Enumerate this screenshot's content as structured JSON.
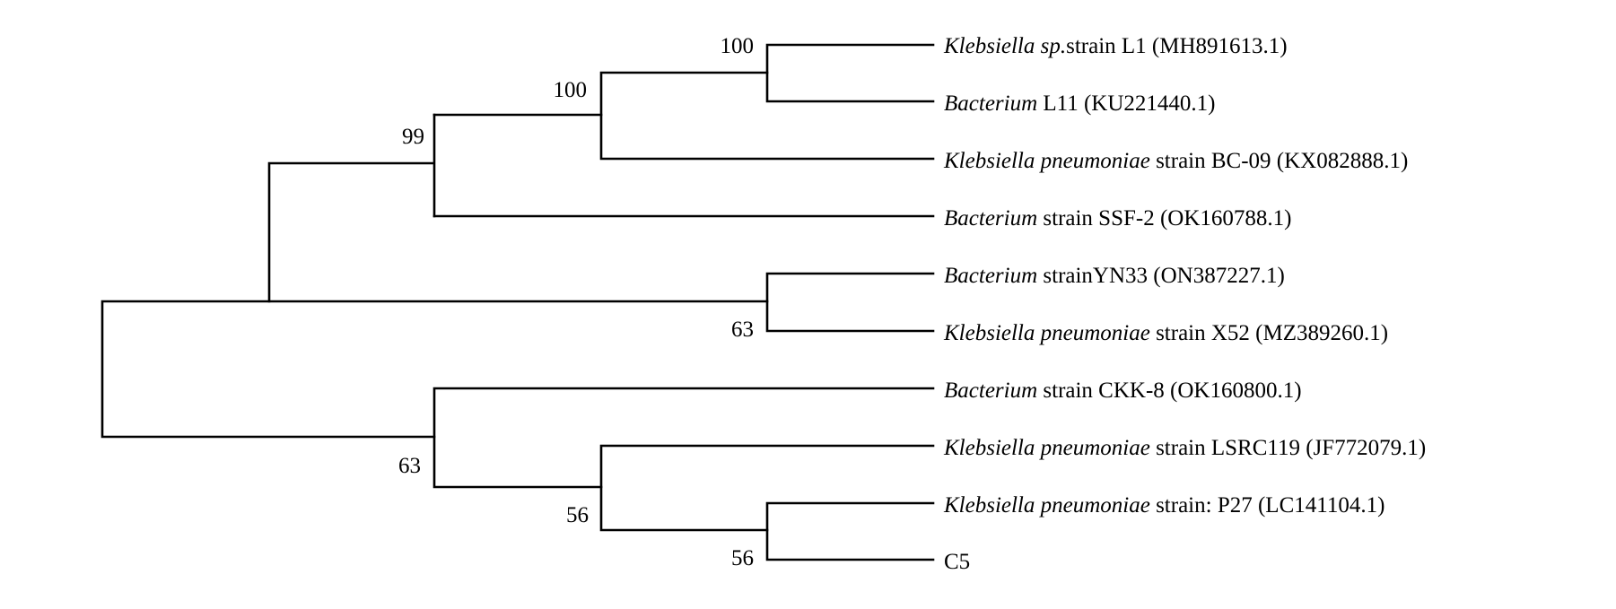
{
  "tree": {
    "leaves": [
      {
        "id": "L1",
        "species": "Klebsiella sp.",
        "rest": "strain L1 (MH891613.1)"
      },
      {
        "id": "L2",
        "species": "Bacterium",
        "rest": " L11 (KU221440.1)"
      },
      {
        "id": "L3",
        "species": "Klebsiella pneumoniae",
        "rest": " strain BC-09 (KX082888.1)"
      },
      {
        "id": "L4",
        "species": "Bacterium",
        "rest": " strain SSF-2 (OK160788.1)"
      },
      {
        "id": "L5",
        "species": "Bacterium",
        "rest": " strainYN33 (ON387227.1)"
      },
      {
        "id": "L6",
        "species": "Klebsiella pneumoniae",
        "rest": " strain X52 (MZ389260.1)"
      },
      {
        "id": "L7",
        "species": "Bacterium",
        "rest": " strain CKK-8 (OK160800.1)"
      },
      {
        "id": "L8",
        "species": "Klebsiella pneumoniae",
        "rest": " strain LSRC119 (JF772079.1)"
      },
      {
        "id": "L9",
        "species": "Klebsiella pneumoniae",
        "rest": " strain: P27 (LC141104.1)"
      },
      {
        "id": "L10",
        "species": "",
        "rest": "C5"
      }
    ],
    "support_values": [
      {
        "node": "N_L1_L2",
        "value": "100"
      },
      {
        "node": "N_L12_L3",
        "value": "100"
      },
      {
        "node": "N_L123_L4",
        "value": "99"
      },
      {
        "node": "N_L5_L6",
        "value": "63"
      },
      {
        "node": "N_L7_rest",
        "value": "63"
      },
      {
        "node": "N_L8_rest",
        "value": "56"
      },
      {
        "node": "N_L9_L10",
        "value": "56"
      }
    ]
  }
}
